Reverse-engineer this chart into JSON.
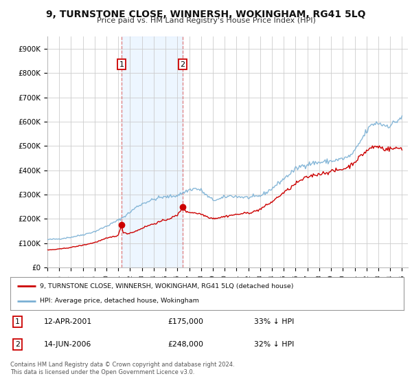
{
  "title": "9, TURNSTONE CLOSE, WINNERSH, WOKINGHAM, RG41 5LQ",
  "subtitle": "Price paid vs. HM Land Registry's House Price Index (HPI)",
  "background_color": "#ffffff",
  "plot_bg_color": "#ffffff",
  "grid_color": "#cccccc",
  "red_line_color": "#cc0000",
  "blue_line_color": "#7ab0d4",
  "purchase_1_x": 2001.28,
  "purchase_1_y": 175000,
  "purchase_1_label": "1",
  "purchase_1_date": "12-APR-2001",
  "purchase_1_price": "£175,000",
  "purchase_1_hpi": "33% ↓ HPI",
  "purchase_2_x": 2006.45,
  "purchase_2_y": 248000,
  "purchase_2_label": "2",
  "purchase_2_date": "14-JUN-2006",
  "purchase_2_price": "£248,000",
  "purchase_2_hpi": "32% ↓ HPI",
  "legend_line1": "9, TURNSTONE CLOSE, WINNERSH, WOKINGHAM, RG41 5LQ (detached house)",
  "legend_line2": "HPI: Average price, detached house, Wokingham",
  "footer": "Contains HM Land Registry data © Crown copyright and database right 2024.\nThis data is licensed under the Open Government Licence v3.0.",
  "yticks": [
    0,
    100000,
    200000,
    300000,
    400000,
    500000,
    600000,
    700000,
    800000,
    900000
  ],
  "ytick_labels": [
    "£0",
    "£100K",
    "£200K",
    "£300K",
    "£400K",
    "£500K",
    "£600K",
    "£700K",
    "£800K",
    "£900K"
  ],
  "xlim_start": 1995.0,
  "xlim_end": 2025.5,
  "ylim_min": 0,
  "ylim_max": 950000,
  "shade_between_purchases_color": "#ddeeff",
  "shade_alpha": 0.5
}
